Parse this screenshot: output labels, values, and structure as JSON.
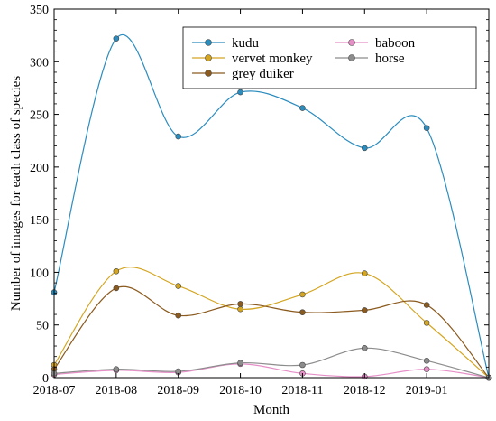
{
  "chart_data": {
    "type": "line",
    "title": "",
    "xlabel": "Month",
    "ylabel": "Number of images for each class of species",
    "x_tick_labels": [
      "2018-07",
      "2018-08",
      "2018-09",
      "2018-10",
      "2018-11",
      "2018-12",
      "2019-01"
    ],
    "x": [
      "2018-07",
      "2018-08",
      "2018-09",
      "2018-10",
      "2018-11",
      "2018-12",
      "2019-01",
      "2019-02"
    ],
    "xlim": [
      "2018-07",
      "2019-02"
    ],
    "ylim": [
      0,
      350
    ],
    "y_ticks": [
      0,
      50,
      100,
      150,
      200,
      250,
      300,
      350
    ],
    "grid": false,
    "legend_position": "top-right",
    "series": [
      {
        "name": "kudu",
        "color": "#2b8cbe",
        "values": [
          81,
          322,
          229,
          271,
          256,
          218,
          237,
          0
        ]
      },
      {
        "name": "vervet monkey",
        "color": "#d4a520",
        "values": [
          12,
          101,
          87,
          65,
          79,
          99,
          52,
          0
        ]
      },
      {
        "name": "grey duiker",
        "color": "#8b5a1e",
        "values": [
          8,
          85,
          59,
          70,
          62,
          64,
          69,
          0
        ]
      },
      {
        "name": "baboon",
        "color": "#e58fc7",
        "values": [
          3,
          7,
          5,
          13,
          4,
          1,
          8,
          0
        ]
      },
      {
        "name": "horse",
        "color": "#8c8c8c",
        "values": [
          4,
          8,
          6,
          14,
          12,
          28,
          16,
          0
        ]
      }
    ]
  }
}
